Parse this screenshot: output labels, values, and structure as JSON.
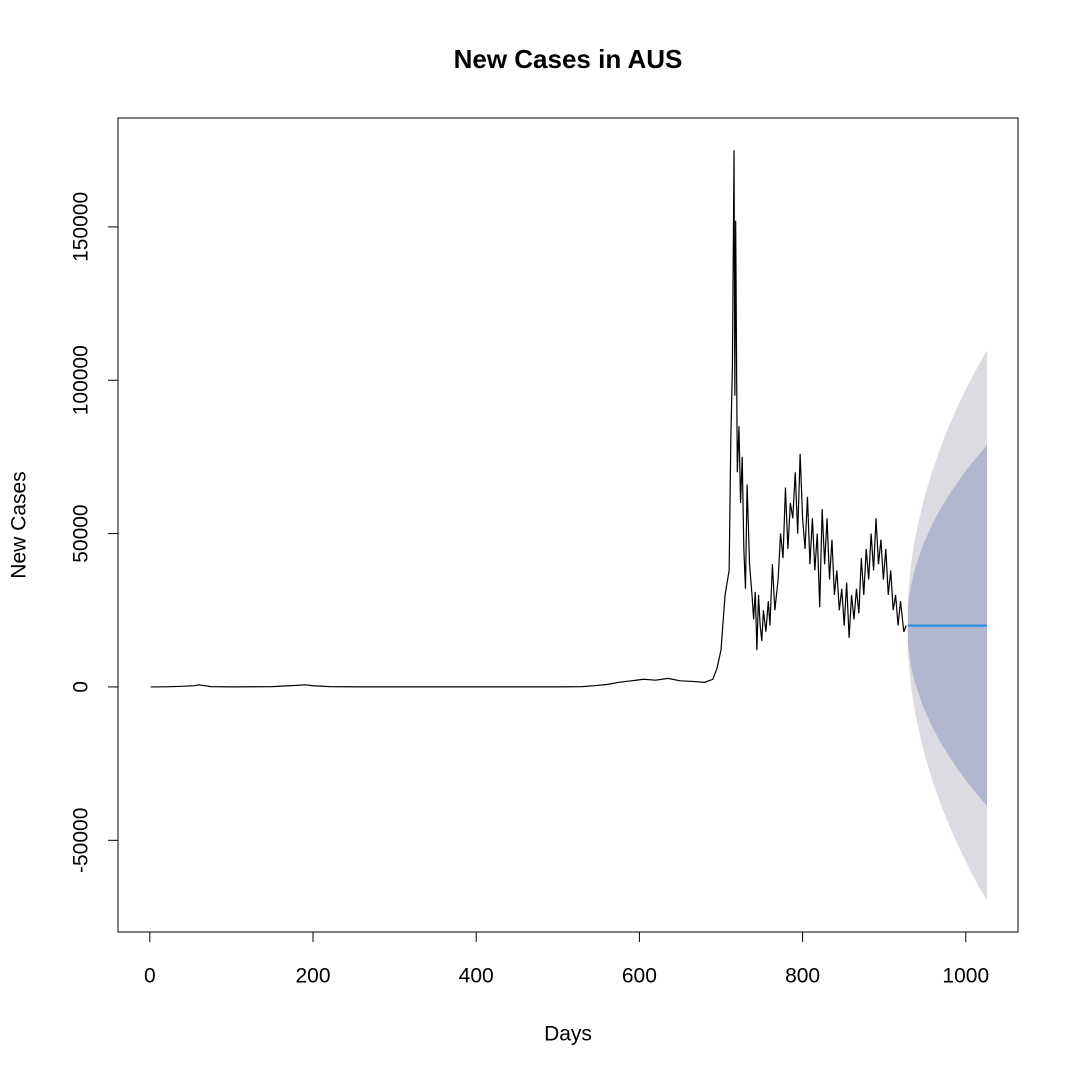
{
  "chart_data": {
    "type": "line",
    "title": "New Cases in AUS",
    "xlabel": "Days",
    "ylabel": "New Cases",
    "xlim": [
      -39,
      1064
    ],
    "ylim": [
      -79900,
      185500
    ],
    "xticks": [
      0,
      200,
      400,
      600,
      800,
      1000
    ],
    "yticks": [
      -50000,
      0,
      50000,
      100000,
      150000
    ],
    "series": [
      {
        "color": "#000000",
        "x": [
          1,
          20,
          40,
          55,
          60,
          65,
          75,
          100,
          150,
          180,
          190,
          200,
          220,
          260,
          300,
          350,
          400,
          450,
          500,
          530,
          545,
          560,
          575,
          590,
          605,
          620,
          635,
          650,
          665,
          680,
          690,
          695,
          700,
          705,
          710,
          712,
          714,
          716,
          717,
          718,
          719,
          720,
          722,
          724,
          726,
          728,
          730,
          732,
          735,
          738,
          740,
          742,
          744,
          746,
          748,
          750,
          752,
          755,
          758,
          760,
          763,
          766,
          770,
          773,
          776,
          779,
          782,
          785,
          788,
          791,
          794,
          797,
          800,
          803,
          806,
          809,
          812,
          815,
          818,
          821,
          824,
          827,
          830,
          833,
          836,
          839,
          842,
          845,
          848,
          851,
          854,
          857,
          860,
          863,
          866,
          869,
          872,
          875,
          878,
          881,
          884,
          887,
          890,
          893,
          896,
          899,
          902,
          905,
          908,
          911,
          914,
          917,
          920,
          924,
          927
        ],
        "values": [
          0,
          50,
          200,
          400,
          700,
          500,
          100,
          20,
          100,
          500,
          700,
          400,
          100,
          20,
          10,
          10,
          10,
          20,
          30,
          100,
          400,
          800,
          1500,
          2000,
          2500,
          2200,
          2800,
          2000,
          1800,
          1500,
          2500,
          6000,
          12000,
          30000,
          38000,
          80000,
          105000,
          175000,
          95000,
          152000,
          110000,
          70000,
          85000,
          60000,
          75000,
          45000,
          32000,
          66000,
          40000,
          30000,
          22000,
          31000,
          12000,
          30000,
          20000,
          15000,
          25000,
          18000,
          28000,
          20000,
          40000,
          25000,
          35000,
          50000,
          42000,
          65000,
          45000,
          60000,
          55000,
          70000,
          50000,
          76000,
          55000,
          45000,
          62000,
          40000,
          55000,
          38000,
          50000,
          26000,
          58000,
          40000,
          55000,
          35000,
          48000,
          30000,
          38000,
          25000,
          32000,
          20000,
          34000,
          16000,
          30000,
          22000,
          32000,
          24000,
          42000,
          30000,
          45000,
          35000,
          50000,
          38000,
          55000,
          40000,
          48000,
          35000,
          45000,
          30000,
          38000,
          25000,
          30000,
          20000,
          28000,
          18000,
          20000
        ]
      }
    ],
    "forecast": {
      "mean_color": "#2b8fe0",
      "band80_color": "#b1b5ce",
      "band95_color": "#dbdbe1",
      "x": [
        929,
        933,
        938,
        948,
        958,
        968,
        978,
        988,
        998,
        1008,
        1018,
        1026
      ],
      "mean": [
        20000,
        20000,
        20000,
        20000,
        20000,
        20000,
        20000,
        20000,
        20000,
        20000,
        20000,
        20000
      ],
      "lo80": [
        14060,
        6720,
        1220,
        -6560,
        -12530,
        -17570,
        -22000,
        -26010,
        -29700,
        -33130,
        -36350,
        -38800
      ],
      "hi80": [
        25940,
        33280,
        38780,
        46560,
        52530,
        57570,
        62000,
        66010,
        69700,
        73130,
        76350,
        78800
      ],
      "lo95": [
        10930,
        -280,
        -8680,
        -20560,
        -29680,
        -37370,
        -44130,
        -50260,
        -55890,
        -61120,
        -66050,
        -69790
      ],
      "hi95": [
        29070,
        40280,
        48680,
        60560,
        69680,
        77370,
        84130,
        90260,
        95890,
        101120,
        106050,
        109790
      ]
    }
  }
}
